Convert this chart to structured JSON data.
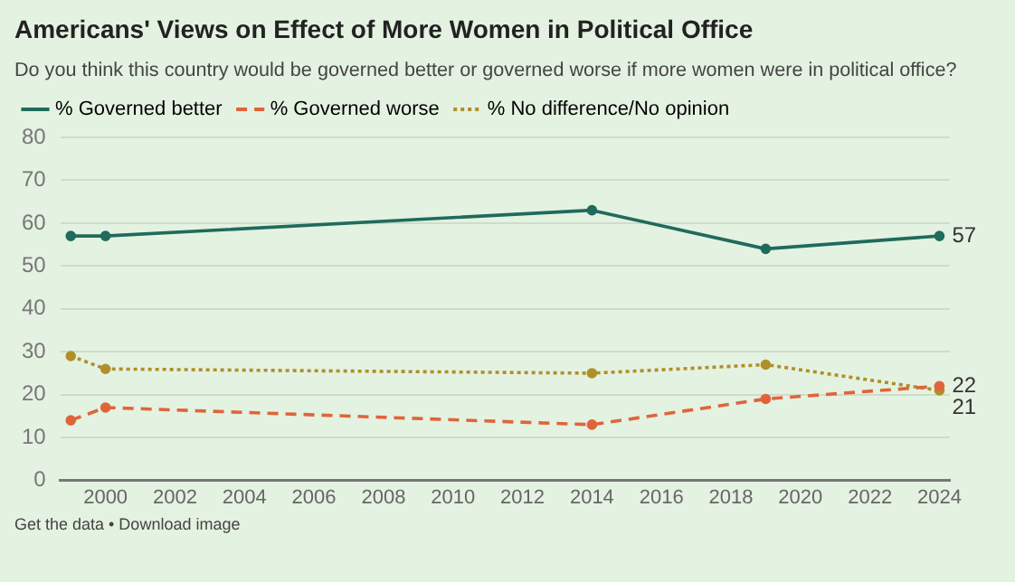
{
  "chart_data": {
    "type": "line",
    "title": "Americans' Views on Effect of More Women in Political Office",
    "subtitle": "Do you think this country would be governed better or governed worse if more women were in political office?",
    "x": [
      1999,
      2000,
      2014,
      2019,
      2024
    ],
    "series": [
      {
        "name": "% Governed better",
        "color": "#1f6b5c",
        "values": [
          57,
          57,
          63,
          54,
          57
        ],
        "value_labels": [
          null,
          null,
          null,
          null,
          "57"
        ],
        "line_style": "solid"
      },
      {
        "name": "% Governed worse",
        "color": "#e0643a",
        "values": [
          14,
          17,
          13,
          19,
          22
        ],
        "value_labels": [
          null,
          null,
          null,
          null,
          "22"
        ],
        "line_style": "dashed"
      },
      {
        "name": "% No difference/No opinion",
        "color": "#b08f2a",
        "values": [
          29,
          26,
          25,
          27,
          21
        ],
        "value_labels": [
          null,
          null,
          null,
          null,
          "21"
        ],
        "line_style": "dotted"
      }
    ],
    "xlim": [
      1998.7,
      2024.3
    ],
    "xticks": [
      2000,
      2002,
      2004,
      2006,
      2008,
      2010,
      2012,
      2014,
      2016,
      2018,
      2020,
      2022,
      2024
    ],
    "ylim": [
      0,
      80
    ],
    "yticks": [
      0,
      10,
      20,
      30,
      40,
      50,
      60,
      70,
      80
    ],
    "grid": "y",
    "legend": "top left",
    "marker": "circle",
    "annotations": [
      "Get the data • Download image"
    ]
  }
}
